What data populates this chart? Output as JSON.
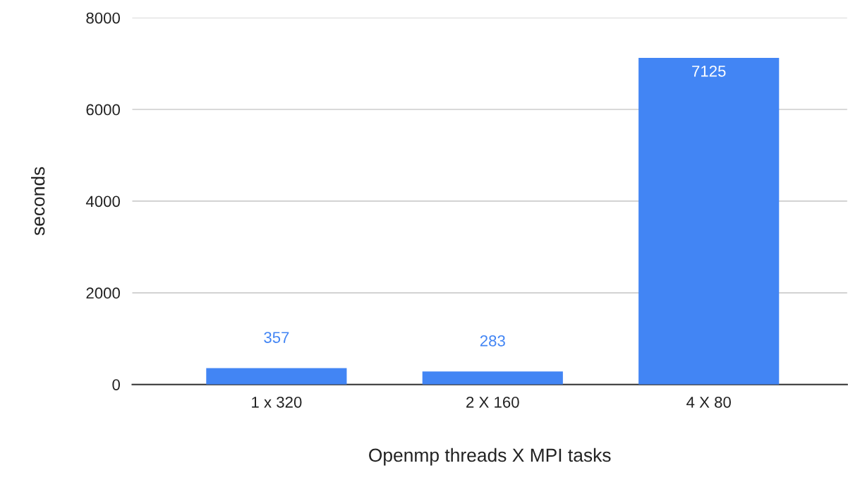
{
  "chart_data": {
    "type": "bar",
    "categories": [
      "1 x 320",
      "2 X 160",
      "4 X 80"
    ],
    "values": [
      357,
      283,
      7125
    ],
    "color": "#4285f4",
    "xlabel": "Openmp threads X MPI tasks",
    "ylabel": "seconds",
    "ylim": [
      0,
      8000
    ],
    "yticks": [
      0,
      2000,
      4000,
      6000,
      8000
    ],
    "grid": "y",
    "data_labels": true
  }
}
